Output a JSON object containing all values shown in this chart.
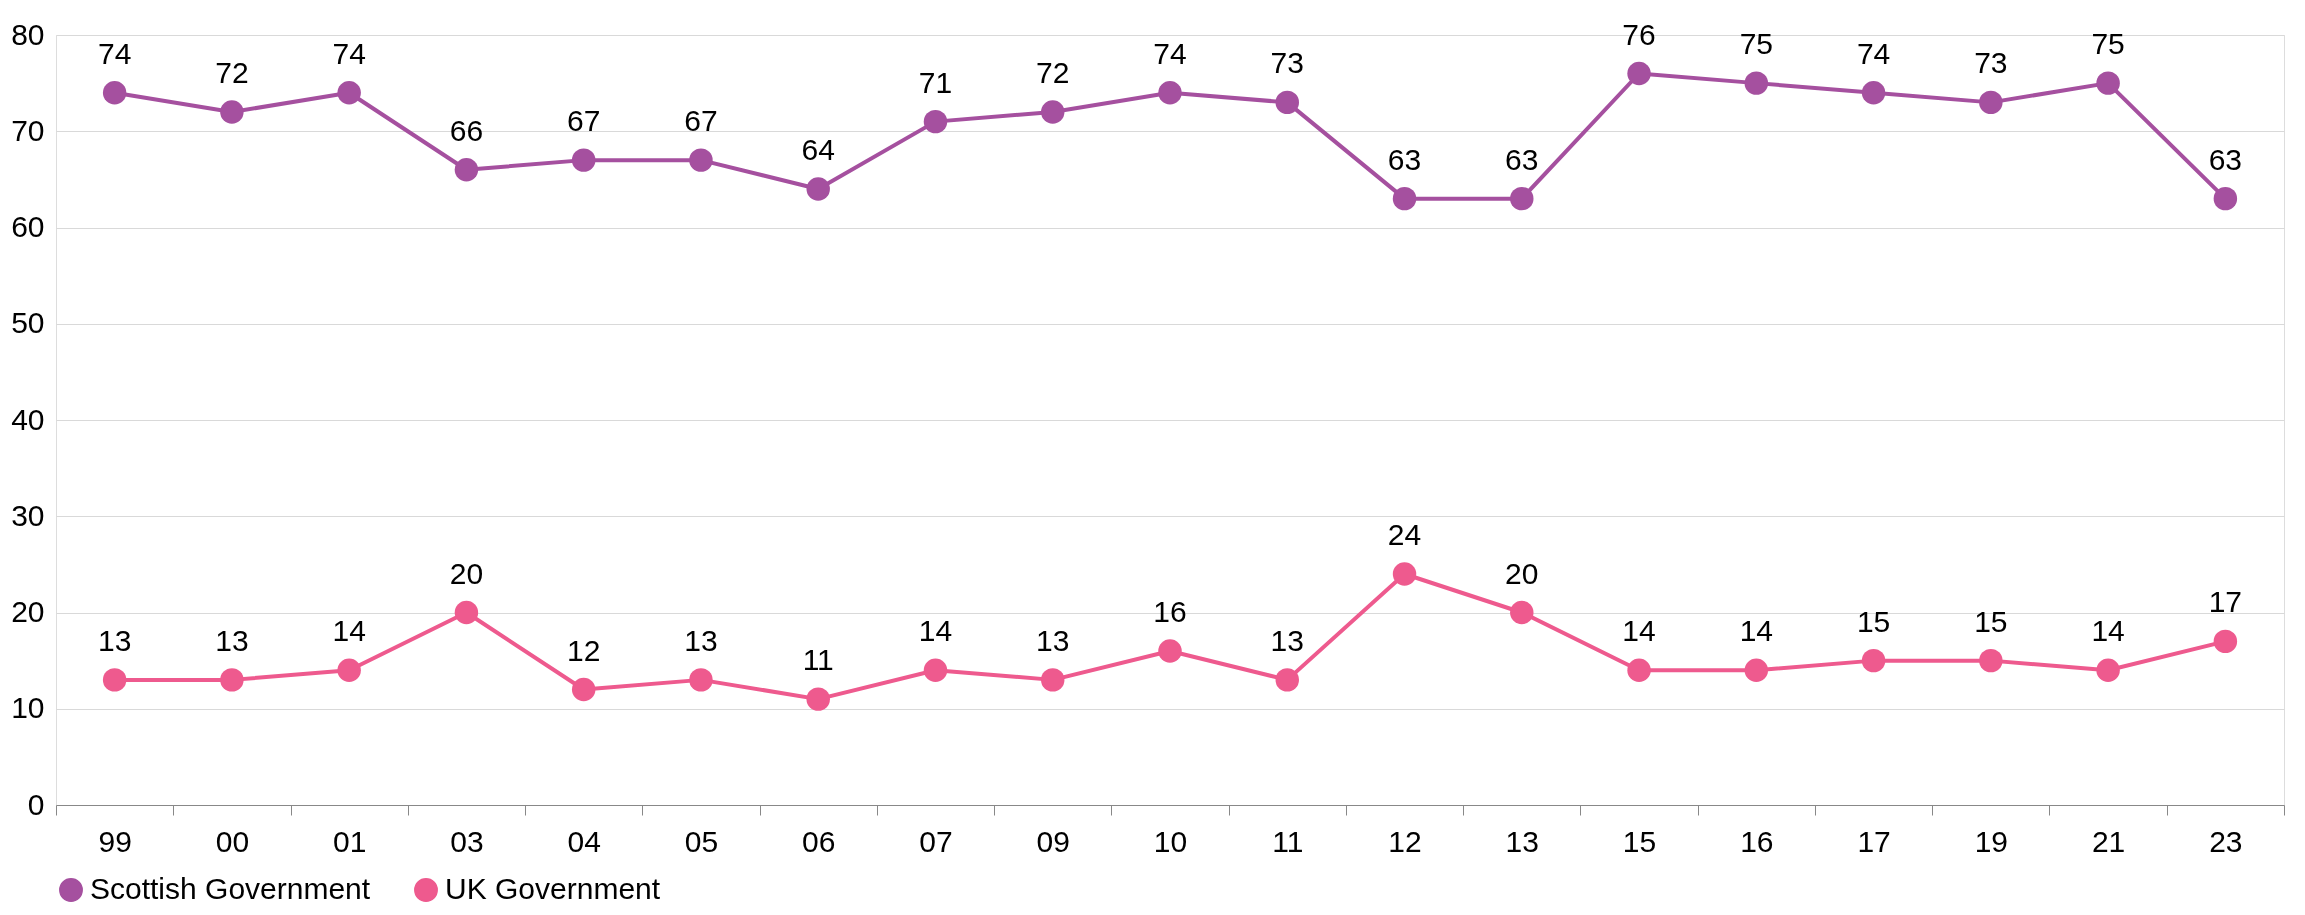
{
  "chart_data": {
    "type": "line",
    "categories": [
      "99",
      "00",
      "01",
      "03",
      "04",
      "05",
      "06",
      "07",
      "09",
      "10",
      "11",
      "12",
      "13",
      "15",
      "16",
      "17",
      "19",
      "21",
      "23"
    ],
    "series": [
      {
        "name": "Scottish Government",
        "color": "#a5509f",
        "values": [
          74,
          72,
          74,
          66,
          67,
          67,
          64,
          71,
          72,
          74,
          73,
          63,
          63,
          76,
          75,
          74,
          73,
          75,
          63
        ]
      },
      {
        "name": "UK Government",
        "color": "#ee5a8e",
        "values": [
          13,
          13,
          14,
          20,
          12,
          13,
          11,
          14,
          13,
          16,
          13,
          24,
          20,
          14,
          14,
          15,
          15,
          14,
          17
        ]
      }
    ],
    "ylim": [
      0,
      80
    ],
    "yticks": [
      0,
      10,
      20,
      30,
      40,
      50,
      60,
      70,
      80
    ],
    "grid": "y",
    "legend": "bottom",
    "marker": "circle",
    "line_style": "solid",
    "data_labels": true
  }
}
